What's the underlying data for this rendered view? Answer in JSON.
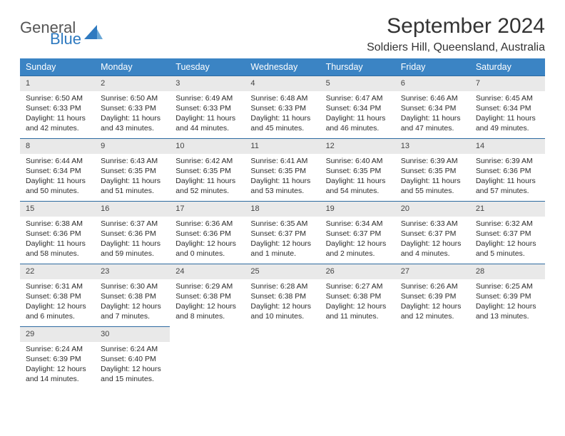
{
  "logo": {
    "general": "General",
    "blue": "Blue"
  },
  "header": {
    "title": "September 2024",
    "location": "Soldiers Hill, Queensland, Australia"
  },
  "colors": {
    "header_bg": "#3b84c4",
    "header_text": "#ffffff",
    "row_divider": "#2d6aa0",
    "daynum_bg": "#e9e9e9",
    "logo_blue": "#2f7ac0"
  },
  "weekdays": [
    "Sunday",
    "Monday",
    "Tuesday",
    "Wednesday",
    "Thursday",
    "Friday",
    "Saturday"
  ],
  "days": [
    {
      "n": "1",
      "sr": "Sunrise: 6:50 AM",
      "ss": "Sunset: 6:33 PM",
      "dl1": "Daylight: 11 hours",
      "dl2": "and 42 minutes."
    },
    {
      "n": "2",
      "sr": "Sunrise: 6:50 AM",
      "ss": "Sunset: 6:33 PM",
      "dl1": "Daylight: 11 hours",
      "dl2": "and 43 minutes."
    },
    {
      "n": "3",
      "sr": "Sunrise: 6:49 AM",
      "ss": "Sunset: 6:33 PM",
      "dl1": "Daylight: 11 hours",
      "dl2": "and 44 minutes."
    },
    {
      "n": "4",
      "sr": "Sunrise: 6:48 AM",
      "ss": "Sunset: 6:33 PM",
      "dl1": "Daylight: 11 hours",
      "dl2": "and 45 minutes."
    },
    {
      "n": "5",
      "sr": "Sunrise: 6:47 AM",
      "ss": "Sunset: 6:34 PM",
      "dl1": "Daylight: 11 hours",
      "dl2": "and 46 minutes."
    },
    {
      "n": "6",
      "sr": "Sunrise: 6:46 AM",
      "ss": "Sunset: 6:34 PM",
      "dl1": "Daylight: 11 hours",
      "dl2": "and 47 minutes."
    },
    {
      "n": "7",
      "sr": "Sunrise: 6:45 AM",
      "ss": "Sunset: 6:34 PM",
      "dl1": "Daylight: 11 hours",
      "dl2": "and 49 minutes."
    },
    {
      "n": "8",
      "sr": "Sunrise: 6:44 AM",
      "ss": "Sunset: 6:34 PM",
      "dl1": "Daylight: 11 hours",
      "dl2": "and 50 minutes."
    },
    {
      "n": "9",
      "sr": "Sunrise: 6:43 AM",
      "ss": "Sunset: 6:35 PM",
      "dl1": "Daylight: 11 hours",
      "dl2": "and 51 minutes."
    },
    {
      "n": "10",
      "sr": "Sunrise: 6:42 AM",
      "ss": "Sunset: 6:35 PM",
      "dl1": "Daylight: 11 hours",
      "dl2": "and 52 minutes."
    },
    {
      "n": "11",
      "sr": "Sunrise: 6:41 AM",
      "ss": "Sunset: 6:35 PM",
      "dl1": "Daylight: 11 hours",
      "dl2": "and 53 minutes."
    },
    {
      "n": "12",
      "sr": "Sunrise: 6:40 AM",
      "ss": "Sunset: 6:35 PM",
      "dl1": "Daylight: 11 hours",
      "dl2": "and 54 minutes."
    },
    {
      "n": "13",
      "sr": "Sunrise: 6:39 AM",
      "ss": "Sunset: 6:35 PM",
      "dl1": "Daylight: 11 hours",
      "dl2": "and 55 minutes."
    },
    {
      "n": "14",
      "sr": "Sunrise: 6:39 AM",
      "ss": "Sunset: 6:36 PM",
      "dl1": "Daylight: 11 hours",
      "dl2": "and 57 minutes."
    },
    {
      "n": "15",
      "sr": "Sunrise: 6:38 AM",
      "ss": "Sunset: 6:36 PM",
      "dl1": "Daylight: 11 hours",
      "dl2": "and 58 minutes."
    },
    {
      "n": "16",
      "sr": "Sunrise: 6:37 AM",
      "ss": "Sunset: 6:36 PM",
      "dl1": "Daylight: 11 hours",
      "dl2": "and 59 minutes."
    },
    {
      "n": "17",
      "sr": "Sunrise: 6:36 AM",
      "ss": "Sunset: 6:36 PM",
      "dl1": "Daylight: 12 hours",
      "dl2": "and 0 minutes."
    },
    {
      "n": "18",
      "sr": "Sunrise: 6:35 AM",
      "ss": "Sunset: 6:37 PM",
      "dl1": "Daylight: 12 hours",
      "dl2": "and 1 minute."
    },
    {
      "n": "19",
      "sr": "Sunrise: 6:34 AM",
      "ss": "Sunset: 6:37 PM",
      "dl1": "Daylight: 12 hours",
      "dl2": "and 2 minutes."
    },
    {
      "n": "20",
      "sr": "Sunrise: 6:33 AM",
      "ss": "Sunset: 6:37 PM",
      "dl1": "Daylight: 12 hours",
      "dl2": "and 4 minutes."
    },
    {
      "n": "21",
      "sr": "Sunrise: 6:32 AM",
      "ss": "Sunset: 6:37 PM",
      "dl1": "Daylight: 12 hours",
      "dl2": "and 5 minutes."
    },
    {
      "n": "22",
      "sr": "Sunrise: 6:31 AM",
      "ss": "Sunset: 6:38 PM",
      "dl1": "Daylight: 12 hours",
      "dl2": "and 6 minutes."
    },
    {
      "n": "23",
      "sr": "Sunrise: 6:30 AM",
      "ss": "Sunset: 6:38 PM",
      "dl1": "Daylight: 12 hours",
      "dl2": "and 7 minutes."
    },
    {
      "n": "24",
      "sr": "Sunrise: 6:29 AM",
      "ss": "Sunset: 6:38 PM",
      "dl1": "Daylight: 12 hours",
      "dl2": "and 8 minutes."
    },
    {
      "n": "25",
      "sr": "Sunrise: 6:28 AM",
      "ss": "Sunset: 6:38 PM",
      "dl1": "Daylight: 12 hours",
      "dl2": "and 10 minutes."
    },
    {
      "n": "26",
      "sr": "Sunrise: 6:27 AM",
      "ss": "Sunset: 6:38 PM",
      "dl1": "Daylight: 12 hours",
      "dl2": "and 11 minutes."
    },
    {
      "n": "27",
      "sr": "Sunrise: 6:26 AM",
      "ss": "Sunset: 6:39 PM",
      "dl1": "Daylight: 12 hours",
      "dl2": "and 12 minutes."
    },
    {
      "n": "28",
      "sr": "Sunrise: 6:25 AM",
      "ss": "Sunset: 6:39 PM",
      "dl1": "Daylight: 12 hours",
      "dl2": "and 13 minutes."
    },
    {
      "n": "29",
      "sr": "Sunrise: 6:24 AM",
      "ss": "Sunset: 6:39 PM",
      "dl1": "Daylight: 12 hours",
      "dl2": "and 14 minutes."
    },
    {
      "n": "30",
      "sr": "Sunrise: 6:24 AM",
      "ss": "Sunset: 6:40 PM",
      "dl1": "Daylight: 12 hours",
      "dl2": "and 15 minutes."
    }
  ],
  "layout": {
    "start_weekday": 0,
    "total_days": 30,
    "columns": 7
  }
}
